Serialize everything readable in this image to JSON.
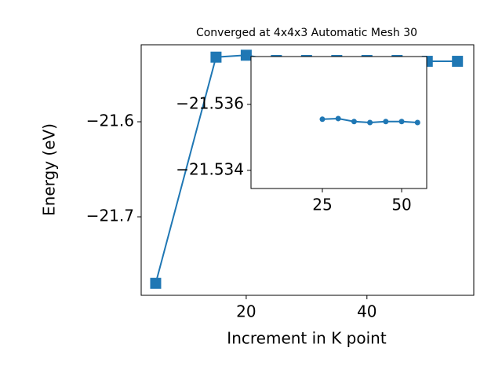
{
  "chart_data": [
    {
      "type": "line",
      "title": "Converged at 4x4x3 Automatic Mesh 30",
      "x_label": "Increment in K point",
      "y_label": "Energy (eV)",
      "x": [
        5,
        15,
        20,
        25,
        30,
        35,
        40,
        45,
        50,
        55
      ],
      "series": [
        {
          "color": "#1f77b4",
          "marker": "square",
          "values": [
            -21.77,
            -21.532,
            -21.53,
            -21.5355,
            -21.5355,
            -21.5355,
            -21.5355,
            -21.5355,
            -21.5364,
            -21.5364
          ]
        }
      ],
      "xlim": [
        2.6,
        57.7
      ],
      "ylim": [
        -21.7826,
        -21.519
      ],
      "xticks": [
        20,
        40
      ],
      "yticks": [
        {
          "value": -21.7,
          "label": "−21.7"
        },
        {
          "value": -21.6,
          "label": "−21.6"
        }
      ]
    },
    {
      "type": "line",
      "x": [
        25,
        30,
        35,
        40,
        45,
        50,
        55
      ],
      "series": [
        {
          "color": "#1f77b4",
          "marker": "circle",
          "values": [
            -21.53555,
            -21.53557,
            -21.53548,
            -21.53545,
            -21.53548,
            -21.53548,
            -21.53545
          ]
        }
      ],
      "xlim": [
        2.5,
        57.9
      ],
      "ylim": [
        -21.53345,
        -21.53745
      ],
      "xticks": [
        25,
        50
      ],
      "yticks": [
        {
          "value": -21.536,
          "label": "−21.536"
        },
        {
          "value": -21.534,
          "label": "−21.534"
        }
      ]
    }
  ]
}
